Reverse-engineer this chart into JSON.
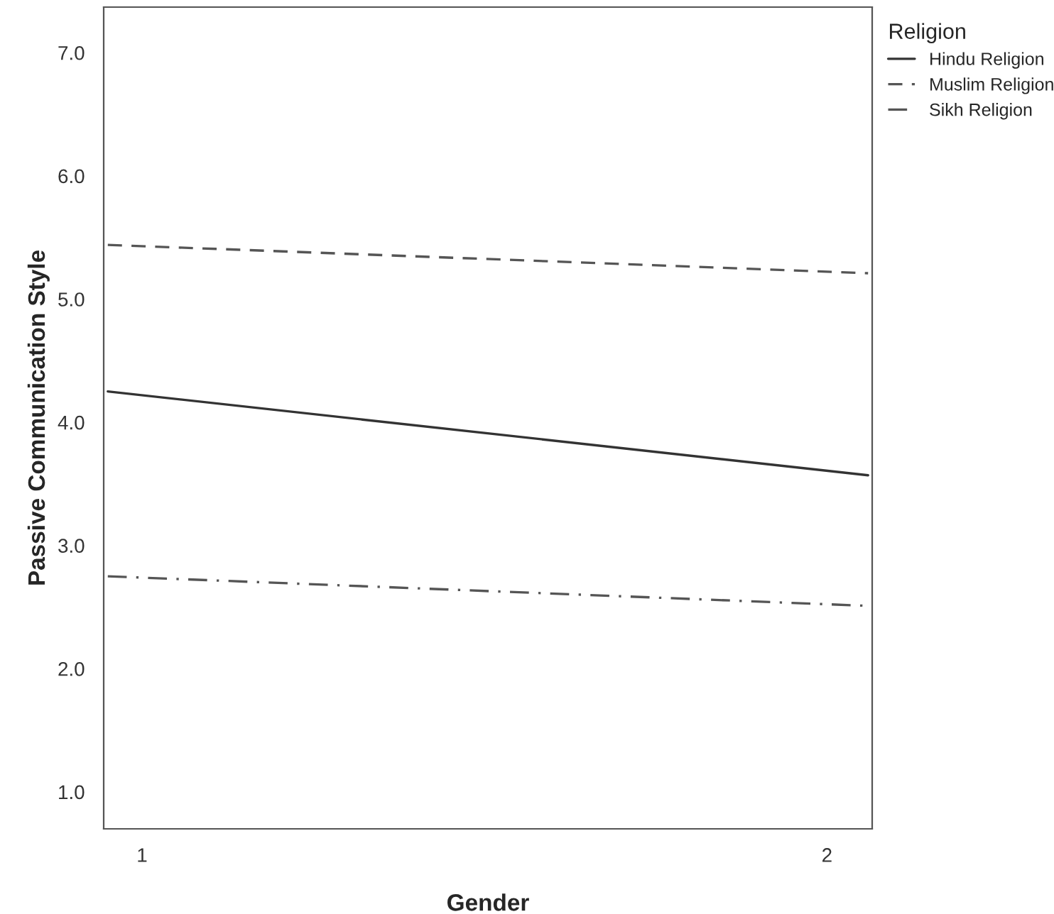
{
  "chart_data": {
    "type": "line",
    "xlabel": "Gender",
    "ylabel": "Passive Communication Style",
    "legend_title": "Religion",
    "legend": "top right",
    "grid": false,
    "marker": "none",
    "xlim": [
      0.944,
      2.066
    ],
    "x": [
      0.95,
      2.06
    ],
    "xticks": [
      1,
      2
    ],
    "ylim": [
      0.7,
      7.37
    ],
    "yticks": [
      {
        "value": 1,
        "label": "1.0"
      },
      {
        "value": 2,
        "label": "2.0"
      },
      {
        "value": 3,
        "label": "3.0"
      },
      {
        "value": 4,
        "label": "4.0"
      },
      {
        "value": 5,
        "label": "5.0"
      },
      {
        "value": 6,
        "label": "6.0"
      },
      {
        "value": 7,
        "label": "7.0"
      }
    ],
    "series": [
      {
        "name": "Hindu Religion",
        "color": "#333333",
        "line_style": "solid",
        "values": [
          4.25,
          3.57
        ]
      },
      {
        "name": "Muslim Religion",
        "color": "#555555",
        "line_style": "dashed",
        "values": [
          5.44,
          5.21
        ]
      },
      {
        "name": "Sikh Religion",
        "color": "#555555",
        "line_style": "dashdot",
        "values": [
          2.75,
          2.51
        ]
      }
    ]
  }
}
